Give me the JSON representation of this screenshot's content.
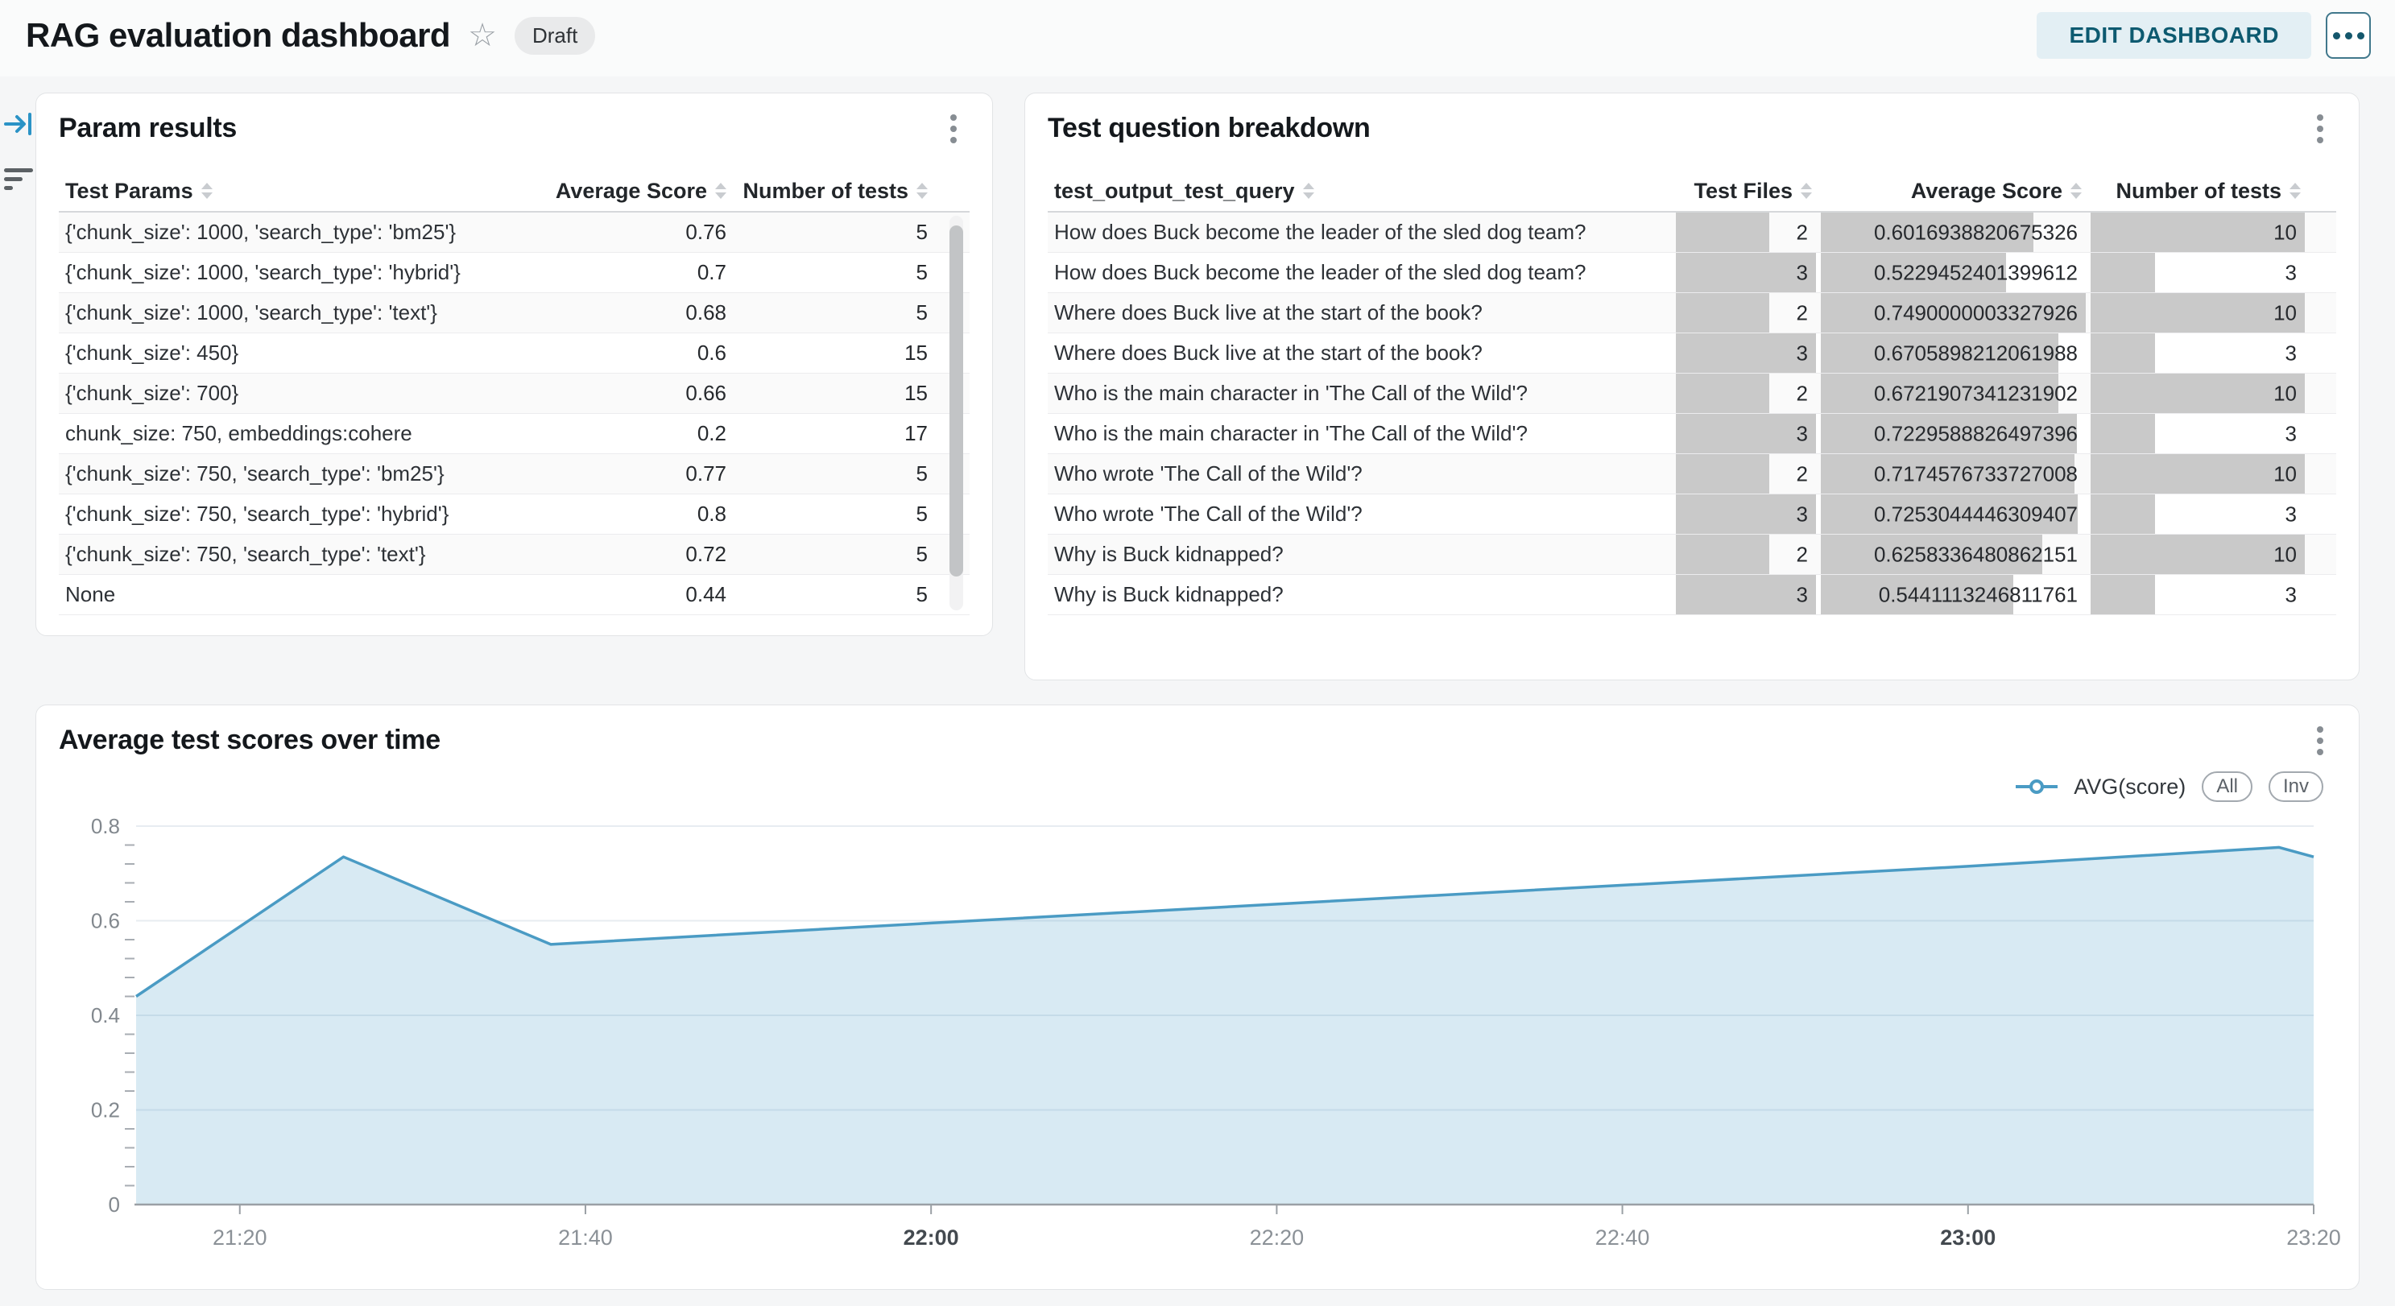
{
  "header": {
    "title": "RAG evaluation dashboard",
    "status_badge": "Draft",
    "edit_button": "EDIT DASHBOARD"
  },
  "colors": {
    "accent_teal": "#0d5a70",
    "edit_button_bg": "#e3eff4",
    "bar_gray": "#c9c9c9",
    "line_blue": "#4a9bc4"
  },
  "param_results": {
    "title": "Param results",
    "columns": [
      "Test Params",
      "Average Score",
      "Number of tests"
    ],
    "rows": [
      {
        "params": "{'chunk_size': 1000, 'search_type': 'bm25'}",
        "avg_score": "0.76",
        "num_tests": "5"
      },
      {
        "params": "{'chunk_size': 1000, 'search_type': 'hybrid'}",
        "avg_score": "0.7",
        "num_tests": "5"
      },
      {
        "params": "{'chunk_size': 1000, 'search_type': 'text'}",
        "avg_score": "0.68",
        "num_tests": "5"
      },
      {
        "params": "{'chunk_size': 450}",
        "avg_score": "0.6",
        "num_tests": "15"
      },
      {
        "params": "{'chunk_size': 700}",
        "avg_score": "0.66",
        "num_tests": "15"
      },
      {
        "params": "chunk_size: 750, embeddings:cohere",
        "avg_score": "0.2",
        "num_tests": "17"
      },
      {
        "params": "{'chunk_size': 750, 'search_type': 'bm25'}",
        "avg_score": "0.77",
        "num_tests": "5"
      },
      {
        "params": "{'chunk_size': 750, 'search_type': 'hybrid'}",
        "avg_score": "0.8",
        "num_tests": "5"
      },
      {
        "params": "{'chunk_size': 750, 'search_type': 'text'}",
        "avg_score": "0.72",
        "num_tests": "5"
      },
      {
        "params": "None",
        "avg_score": "0.44",
        "num_tests": "5"
      }
    ]
  },
  "question_breakdown": {
    "title": "Test question breakdown",
    "columns": [
      "test_output_test_query",
      "Test Files",
      "Average Score",
      "Number of tests"
    ],
    "rows": [
      {
        "query": "How does Buck become the leader of the sled dog team?",
        "test_files": "2",
        "avg_score": "0.6016938820675326",
        "num_tests": "10"
      },
      {
        "query": "How does Buck become the leader of the sled dog team?",
        "test_files": "3",
        "avg_score": "0.5229452401399612",
        "num_tests": "3"
      },
      {
        "query": "Where does Buck live at the start of the book?",
        "test_files": "2",
        "avg_score": "0.7490000003327926",
        "num_tests": "10"
      },
      {
        "query": "Where does Buck live at the start of the book?",
        "test_files": "3",
        "avg_score": "0.6705898212061988",
        "num_tests": "3"
      },
      {
        "query": "Who is the main character in 'The Call of the Wild'?",
        "test_files": "2",
        "avg_score": "0.6721907341231902",
        "num_tests": "10"
      },
      {
        "query": "Who is the main character in 'The Call of the Wild'?",
        "test_files": "3",
        "avg_score": "0.7229588826497396",
        "num_tests": "3"
      },
      {
        "query": "Who wrote 'The Call of the Wild'?",
        "test_files": "2",
        "avg_score": "0.7174576733727008",
        "num_tests": "10"
      },
      {
        "query": "Who wrote 'The Call of the Wild'?",
        "test_files": "3",
        "avg_score": "0.7253044446309407",
        "num_tests": "3"
      },
      {
        "query": "Why is Buck kidnapped?",
        "test_files": "2",
        "avg_score": "0.6258336480862151",
        "num_tests": "10"
      },
      {
        "query": "Why is Buck kidnapped?",
        "test_files": "3",
        "avg_score": "0.5441113246811761",
        "num_tests": "3"
      }
    ]
  },
  "chart_panel": {
    "title": "Average test scores over time",
    "legend": {
      "series_label": "AVG(score)",
      "buttons": [
        "All",
        "Inv"
      ]
    }
  },
  "chart_data": {
    "type": "area",
    "title": "Average test scores over time",
    "series": [
      {
        "name": "AVG(score)",
        "points": [
          [
            "21:14",
            0.44
          ],
          [
            "21:26",
            0.735
          ],
          [
            "21:38",
            0.55
          ],
          [
            "22:00",
            0.595
          ],
          [
            "22:20",
            0.635
          ],
          [
            "22:40",
            0.675
          ],
          [
            "23:00",
            0.715
          ],
          [
            "23:18",
            0.755
          ],
          [
            "23:20",
            0.735
          ]
        ]
      }
    ],
    "x_domain": [
      "21:14",
      "23:20"
    ],
    "y_domain": [
      0,
      0.8
    ],
    "y_ticks_major": [
      0,
      0.2,
      0.4,
      0.6,
      0.8
    ],
    "y_minor_step": 0.04,
    "x_ticks": [
      {
        "label": "21:20",
        "bold": false
      },
      {
        "label": "21:40",
        "bold": false
      },
      {
        "label": "22:00",
        "bold": true
      },
      {
        "label": "22:20",
        "bold": false
      },
      {
        "label": "22:40",
        "bold": false
      },
      {
        "label": "23:00",
        "bold": true
      },
      {
        "label": "23:20",
        "bold": false
      }
    ],
    "line_color": "#4a9bc4",
    "fill_color": "rgba(77,158,201,0.22)",
    "grid": true,
    "legend_position": "top-right",
    "xlabel": "",
    "ylabel": ""
  }
}
